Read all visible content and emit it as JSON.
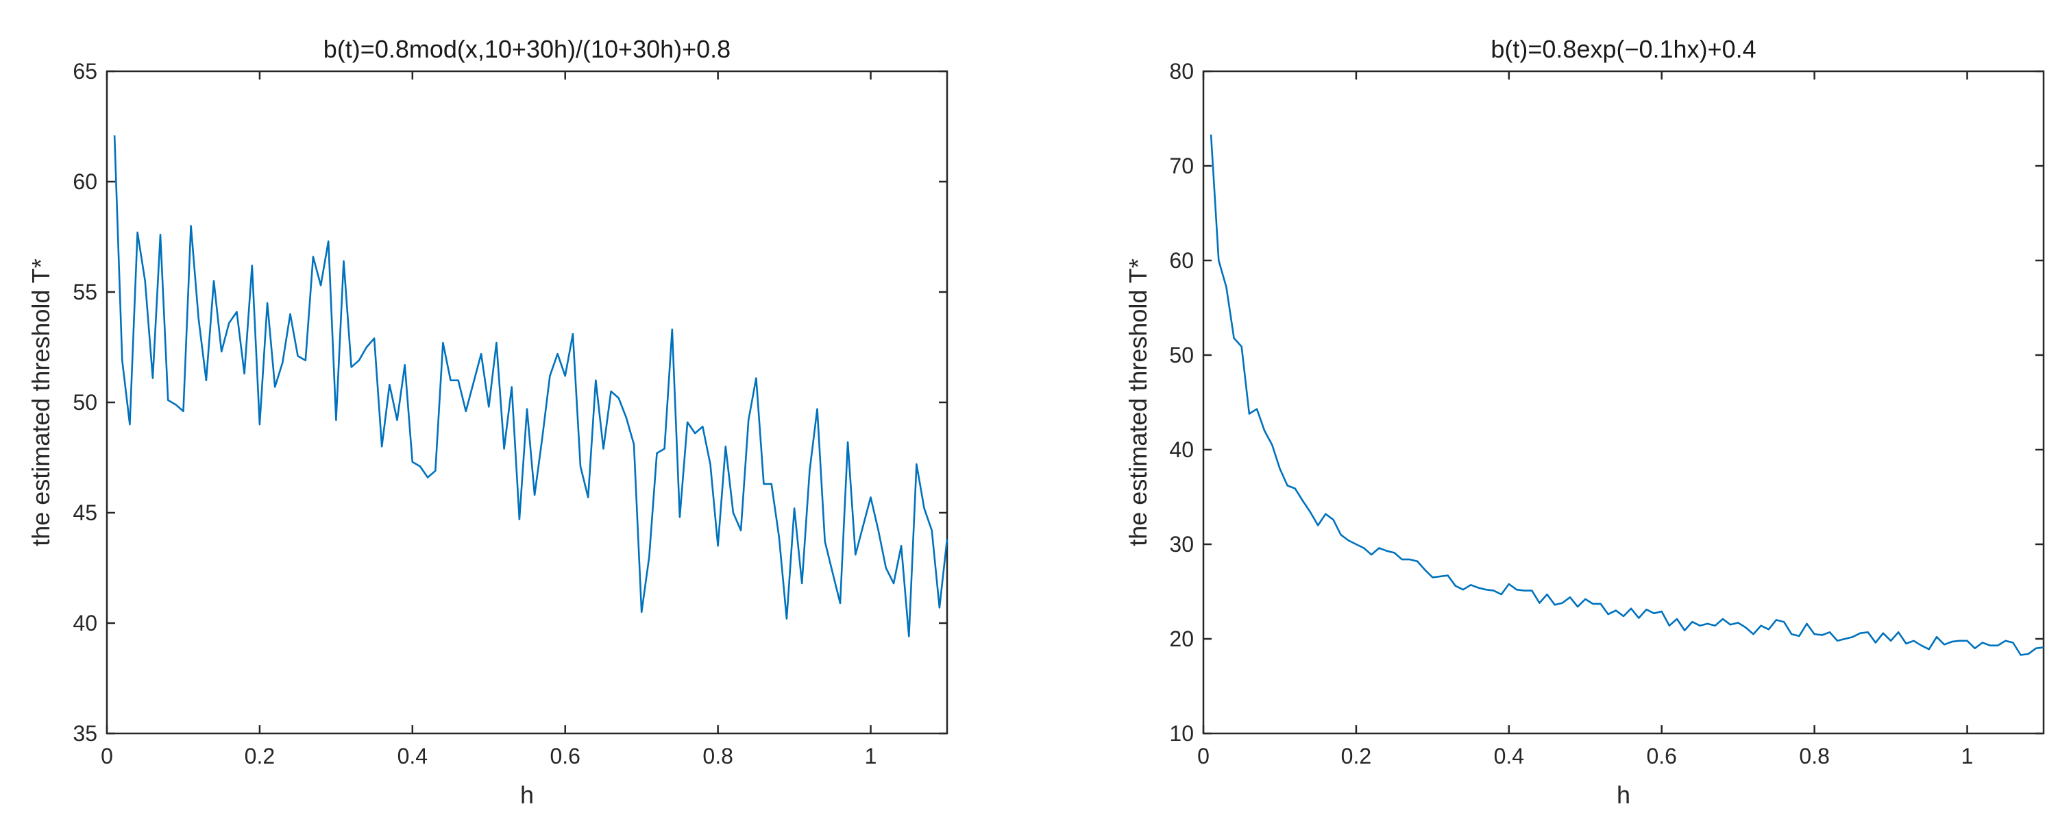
{
  "colors": {
    "series": "#0072bd",
    "axis": "#262626",
    "background": "#ffffff"
  },
  "chart_data": [
    {
      "type": "line",
      "title": "b(t)=0.8mod(x,10+30h)/(10+30h)+0.8",
      "xlabel": "h",
      "ylabel": "the estimated threshold T*",
      "xlim": [
        0,
        1.1
      ],
      "ylim": [
        35,
        65
      ],
      "xticks": [
        0,
        0.2,
        0.4,
        0.6,
        0.8,
        1
      ],
      "xtick_labels": [
        "0",
        "0.2",
        "0.4",
        "0.6",
        "0.8",
        "1"
      ],
      "yticks": [
        35,
        40,
        45,
        50,
        55,
        60,
        65
      ],
      "ytick_labels": [
        "35",
        "40",
        "45",
        "50",
        "55",
        "60",
        "65"
      ],
      "grid": false,
      "series": [
        {
          "x": [
            0.01,
            0.02,
            0.03,
            0.04,
            0.05,
            0.06,
            0.07,
            0.08,
            0.09,
            0.1,
            0.11,
            0.12,
            0.13,
            0.14,
            0.15,
            0.16,
            0.17,
            0.18,
            0.19,
            0.2,
            0.21,
            0.22,
            0.23,
            0.24,
            0.25,
            0.26,
            0.27,
            0.28,
            0.29,
            0.3,
            0.31,
            0.32,
            0.33,
            0.34,
            0.35,
            0.36,
            0.37,
            0.38,
            0.39,
            0.4,
            0.41,
            0.42,
            0.43,
            0.44,
            0.45,
            0.46,
            0.47,
            0.48,
            0.49,
            0.5,
            0.51,
            0.52,
            0.53,
            0.54,
            0.55,
            0.56,
            0.57,
            0.58,
            0.59,
            0.6,
            0.61,
            0.62,
            0.63,
            0.64,
            0.65,
            0.66,
            0.67,
            0.68,
            0.69,
            0.7,
            0.71,
            0.72,
            0.73,
            0.74,
            0.75,
            0.76,
            0.77,
            0.78,
            0.79,
            0.8,
            0.81,
            0.82,
            0.83,
            0.84,
            0.85,
            0.86,
            0.87,
            0.88,
            0.89,
            0.9,
            0.91,
            0.92,
            0.93,
            0.94,
            0.95,
            0.96,
            0.97,
            0.98,
            0.99,
            1.0,
            1.01,
            1.02,
            1.03,
            1.04,
            1.05,
            1.06,
            1.07,
            1.08,
            1.09,
            1.1
          ],
          "y": [
            62.1,
            51.9,
            49.0,
            57.7,
            55.5,
            51.1,
            57.6,
            50.1,
            49.9,
            49.6,
            58.0,
            53.8,
            51.0,
            55.5,
            52.3,
            53.6,
            54.1,
            51.3,
            56.2,
            49.0,
            54.5,
            50.7,
            51.8,
            54.0,
            52.1,
            51.9,
            56.6,
            55.3,
            57.3,
            49.2,
            56.4,
            51.6,
            51.9,
            52.5,
            52.9,
            48.0,
            50.8,
            49.2,
            51.7,
            47.3,
            47.1,
            46.6,
            46.9,
            52.7,
            51.0,
            51.0,
            49.6,
            50.9,
            52.2,
            49.8,
            52.7,
            47.9,
            50.7,
            44.7,
            49.7,
            45.8,
            48.4,
            51.2,
            52.2,
            51.2,
            53.1,
            47.1,
            45.7,
            51.0,
            47.9,
            50.5,
            50.2,
            49.3,
            48.1,
            40.5,
            43.0,
            47.7,
            47.9,
            53.3,
            44.8,
            49.1,
            48.6,
            48.9,
            47.2,
            43.5,
            48.0,
            45.0,
            44.2,
            49.2,
            51.1,
            46.3,
            46.3,
            43.9,
            40.2,
            45.2,
            41.8,
            46.9,
            49.7,
            43.7,
            42.3,
            40.9,
            48.2,
            43.1,
            44.4,
            45.7,
            44.2,
            42.5,
            41.8,
            43.5,
            39.4,
            47.2,
            45.2,
            44.2,
            40.7,
            43.8
          ]
        }
      ]
    },
    {
      "type": "line",
      "title": "b(t)=0.8exp(−0.1hx)+0.4",
      "xlabel": "h",
      "ylabel": "the estimated threshold T*",
      "xlim": [
        0,
        1.1
      ],
      "ylim": [
        10,
        80
      ],
      "xticks": [
        0,
        0.2,
        0.4,
        0.6,
        0.8,
        1
      ],
      "xtick_labels": [
        "0",
        "0.2",
        "0.4",
        "0.6",
        "0.8",
        "1"
      ],
      "yticks": [
        10,
        20,
        30,
        40,
        50,
        60,
        70,
        80
      ],
      "ytick_labels": [
        "10",
        "20",
        "30",
        "40",
        "50",
        "60",
        "70",
        "80"
      ],
      "grid": false,
      "series": [
        {
          "x": [
            0.01,
            0.02,
            0.03,
            0.04,
            0.05,
            0.06,
            0.07,
            0.08,
            0.09,
            0.1,
            0.11,
            0.12,
            0.13,
            0.14,
            0.15,
            0.16,
            0.17,
            0.18,
            0.19,
            0.2,
            0.21,
            0.22,
            0.23,
            0.24,
            0.25,
            0.26,
            0.27,
            0.28,
            0.29,
            0.3,
            0.31,
            0.32,
            0.33,
            0.34,
            0.35,
            0.36,
            0.37,
            0.38,
            0.39,
            0.4,
            0.41,
            0.42,
            0.43,
            0.44,
            0.45,
            0.46,
            0.47,
            0.48,
            0.49,
            0.5,
            0.51,
            0.52,
            0.53,
            0.54,
            0.55,
            0.56,
            0.57,
            0.58,
            0.59,
            0.6,
            0.61,
            0.62,
            0.63,
            0.64,
            0.65,
            0.66,
            0.67,
            0.68,
            0.69,
            0.7,
            0.71,
            0.72,
            0.73,
            0.74,
            0.75,
            0.76,
            0.77,
            0.78,
            0.79,
            0.8,
            0.81,
            0.82,
            0.83,
            0.84,
            0.85,
            0.86,
            0.87,
            0.88,
            0.89,
            0.9,
            0.91,
            0.92,
            0.93,
            0.94,
            0.95,
            0.96,
            0.97,
            0.98,
            0.99,
            1.0,
            1.01,
            1.02,
            1.03,
            1.04,
            1.05,
            1.06,
            1.07,
            1.08,
            1.09,
            1.1
          ],
          "y": [
            73.3,
            60.0,
            57.2,
            51.8,
            50.9,
            43.8,
            44.3,
            42.0,
            40.5,
            38.0,
            36.2,
            35.9,
            34.6,
            33.4,
            32.0,
            33.2,
            32.6,
            31.0,
            30.4,
            30.0,
            29.6,
            28.9,
            29.6,
            29.3,
            29.1,
            28.4,
            28.4,
            28.2,
            27.3,
            26.5,
            26.6,
            26.7,
            25.6,
            25.2,
            25.7,
            25.4,
            25.2,
            25.1,
            24.7,
            25.8,
            25.2,
            25.1,
            25.1,
            23.8,
            24.7,
            23.6,
            23.8,
            24.4,
            23.4,
            24.2,
            23.7,
            23.7,
            22.6,
            23.0,
            22.4,
            23.2,
            22.2,
            23.1,
            22.7,
            22.9,
            21.4,
            22.1,
            20.9,
            21.8,
            21.4,
            21.6,
            21.4,
            22.1,
            21.5,
            21.7,
            21.2,
            20.5,
            21.4,
            21.0,
            22.0,
            21.8,
            20.5,
            20.3,
            21.6,
            20.5,
            20.4,
            20.7,
            19.8,
            20.0,
            20.2,
            20.6,
            20.7,
            19.6,
            20.6,
            19.8,
            20.7,
            19.5,
            19.8,
            19.3,
            18.9,
            20.2,
            19.4,
            19.7,
            19.8,
            19.8,
            19.0,
            19.6,
            19.3,
            19.3,
            19.8,
            19.6,
            18.3,
            18.4,
            19.0,
            19.1
          ]
        }
      ]
    }
  ]
}
